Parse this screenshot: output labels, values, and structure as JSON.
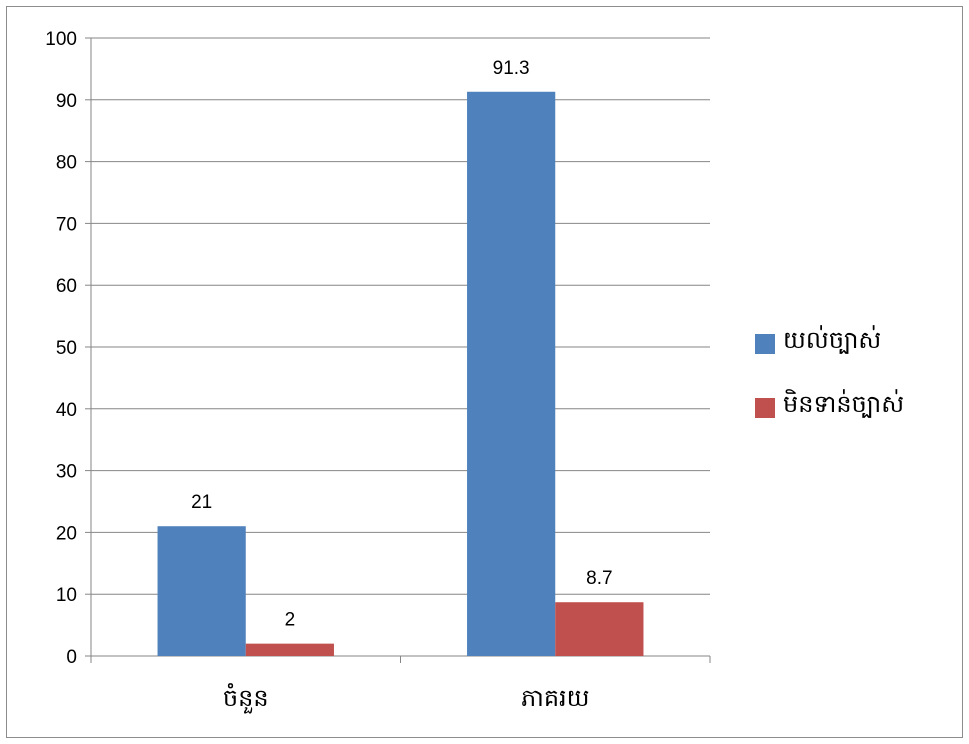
{
  "chart_data": {
    "type": "bar",
    "categories": [
      "ចំនួន",
      "ភាគរយ"
    ],
    "series": [
      {
        "name": "យល់ច្បាស់",
        "values": [
          21,
          91.3
        ],
        "color": "#4f81bd"
      },
      {
        "name": "មិនទាន់ច្បាស់",
        "values": [
          2,
          8.7
        ],
        "color": "#c0504d"
      }
    ],
    "data_labels": [
      [
        "21",
        "91.3"
      ],
      [
        "2",
        "8.7"
      ]
    ],
    "y_ticks": [
      "0",
      "10",
      "20",
      "30",
      "40",
      "50",
      "60",
      "70",
      "80",
      "90",
      "100"
    ],
    "ylim": [
      0,
      100
    ],
    "title": "",
    "xlabel": "",
    "ylabel": "",
    "grid": true,
    "legend_position": "right"
  }
}
